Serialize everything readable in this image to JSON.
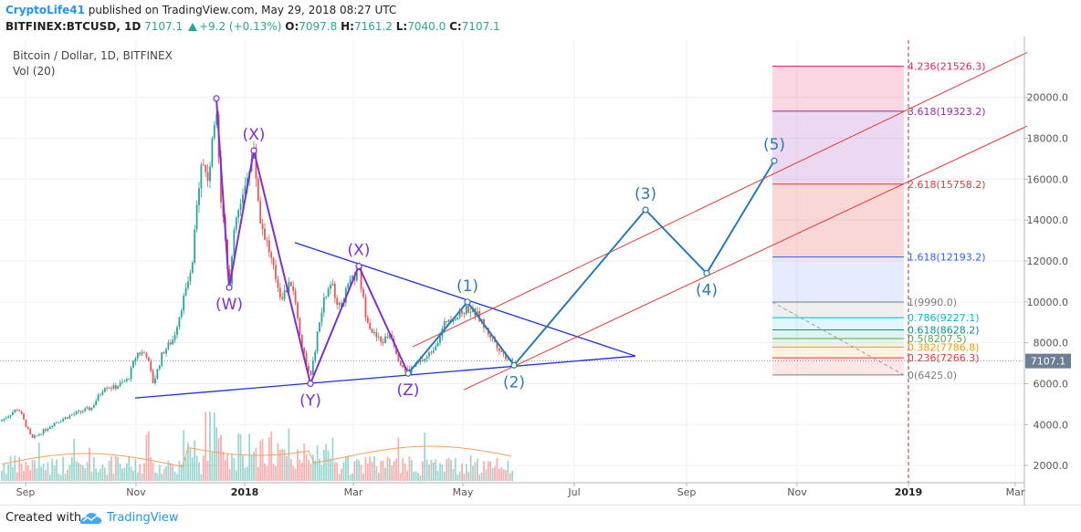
{
  "header": {
    "author": "CryptoLife41",
    "published_text": " published on TradingView.com, May 29, 2018 08:27 UTC",
    "symbol": "BITFINEX:BTCUSD, 1D",
    "last": "7107.1",
    "change": "+9.2 (+0.13%)",
    "open_label": "O:",
    "open": "7097.8",
    "high_label": "H:",
    "high": "7161.2",
    "low_label": "L:",
    "low": "7040.0",
    "close_label": "C:",
    "close": "7107.1"
  },
  "legend": {
    "title": "Bitcoin / Dollar, 1D, BITFINEX",
    "volume": "Vol (20)"
  },
  "footer": {
    "created_with": "Created with",
    "brand": "TradingView"
  },
  "colors": {
    "bull": "#26a69a",
    "bear": "#ef5350",
    "elliott": "#2a7ab5",
    "wxy": "#7b2fd6",
    "triangle": "#1a2fe0",
    "channel": "#e53935",
    "price_tag": "#6d7f94",
    "brand": "#2196f3"
  },
  "chart_data": {
    "type": "candlestick",
    "price_axis": {
      "min": 1200,
      "max": 22800,
      "ticks": [
        "2000.0",
        "4000.0",
        "6000.0",
        "8000.0",
        "10000.0",
        "12000.0",
        "14000.0",
        "16000.0",
        "18000.0",
        "20000.0"
      ],
      "tick_values": [
        2000,
        4000,
        6000,
        8000,
        10000,
        12000,
        14000,
        16000,
        18000,
        20000
      ],
      "last_price_tag": "7107.1",
      "last_price": 7107.1
    },
    "time_axis": {
      "labels": [
        "Sep",
        "Nov",
        "2018",
        "Mar",
        "May",
        "Jul",
        "Sep",
        "Nov",
        "2019",
        "Mar"
      ],
      "bold": [
        "2018",
        "2019"
      ]
    },
    "price_path": [
      {
        "t": 0,
        "p": 4150
      },
      {
        "t": 20,
        "p": 4800
      },
      {
        "t": 35,
        "p": 3300
      },
      {
        "t": 48,
        "p": 3700
      },
      {
        "t": 60,
        "p": 4100
      },
      {
        "t": 80,
        "p": 4500
      },
      {
        "t": 100,
        "p": 4800
      },
      {
        "t": 115,
        "p": 5900
      },
      {
        "t": 125,
        "p": 5800
      },
      {
        "t": 140,
        "p": 6200
      },
      {
        "t": 150,
        "p": 7500
      },
      {
        "t": 160,
        "p": 7500
      },
      {
        "t": 168,
        "p": 6000
      },
      {
        "t": 178,
        "p": 7500
      },
      {
        "t": 190,
        "p": 8200
      },
      {
        "t": 200,
        "p": 10000
      },
      {
        "t": 210,
        "p": 11500
      },
      {
        "t": 220,
        "p": 17000
      },
      {
        "t": 228,
        "p": 16000
      },
      {
        "t": 232,
        "p": 17500
      },
      {
        "t": 237,
        "p": 19800
      },
      {
        "t": 242,
        "p": 15000
      },
      {
        "t": 246,
        "p": 13500
      },
      {
        "t": 251,
        "p": 10800
      },
      {
        "t": 258,
        "p": 14000
      },
      {
        "t": 266,
        "p": 15000
      },
      {
        "t": 272,
        "p": 16500
      },
      {
        "t": 278,
        "p": 17300
      },
      {
        "t": 285,
        "p": 14000
      },
      {
        "t": 292,
        "p": 13000
      },
      {
        "t": 300,
        "p": 11500
      },
      {
        "t": 308,
        "p": 10200
      },
      {
        "t": 320,
        "p": 11000
      },
      {
        "t": 330,
        "p": 8000
      },
      {
        "t": 340,
        "p": 6200
      },
      {
        "t": 348,
        "p": 8500
      },
      {
        "t": 356,
        "p": 10300
      },
      {
        "t": 364,
        "p": 10800
      },
      {
        "t": 372,
        "p": 9700
      },
      {
        "t": 382,
        "p": 10800
      },
      {
        "t": 393,
        "p": 11500
      },
      {
        "t": 400,
        "p": 9500
      },
      {
        "t": 408,
        "p": 8500
      },
      {
        "t": 418,
        "p": 8000
      },
      {
        "t": 428,
        "p": 8500
      },
      {
        "t": 438,
        "p": 7000
      },
      {
        "t": 447,
        "p": 6600
      },
      {
        "t": 458,
        "p": 7000
      },
      {
        "t": 468,
        "p": 7300
      },
      {
        "t": 478,
        "p": 8000
      },
      {
        "t": 490,
        "p": 9200
      },
      {
        "t": 502,
        "p": 9300
      },
      {
        "t": 512,
        "p": 9700
      },
      {
        "t": 522,
        "p": 9400
      },
      {
        "t": 533,
        "p": 8600
      },
      {
        "t": 543,
        "p": 8000
      },
      {
        "t": 552,
        "p": 7400
      },
      {
        "t": 563,
        "p": 7100
      }
    ],
    "wxy_pattern": {
      "points": [
        {
          "t": 237,
          "p": 19950
        },
        {
          "t": 251,
          "p": 10700
        },
        {
          "t": 278,
          "p": 17400
        },
        {
          "t": 340,
          "p": 6000
        },
        {
          "t": 393,
          "p": 11750
        },
        {
          "t": 447,
          "p": 6500
        }
      ],
      "labels": [
        {
          "text": "(W)",
          "t": 251,
          "p": 10700,
          "pos": "below"
        },
        {
          "text": "(X)",
          "t": 278,
          "p": 17400,
          "pos": "above"
        },
        {
          "text": "(Y)",
          "t": 340,
          "p": 6000,
          "pos": "below"
        },
        {
          "text": "(X)",
          "t": 393,
          "p": 11750,
          "pos": "above"
        },
        {
          "text": "(Z)",
          "t": 447,
          "p": 6500,
          "pos": "below"
        }
      ]
    },
    "elliott_waves": {
      "points": [
        {
          "t": 447,
          "p": 6500
        },
        {
          "t": 512,
          "p": 10000
        },
        {
          "t": 563,
          "p": 6900
        },
        {
          "t": 707,
          "p": 14500
        },
        {
          "t": 774,
          "p": 11400
        },
        {
          "t": 848,
          "p": 16900
        }
      ],
      "labels": [
        {
          "text": "(1)",
          "t": 512,
          "p": 10000,
          "pos": "above"
        },
        {
          "text": "(2)",
          "t": 563,
          "p": 6900,
          "pos": "below"
        },
        {
          "text": "(3)",
          "t": 707,
          "p": 14500,
          "pos": "above"
        },
        {
          "text": "(4)",
          "t": 774,
          "p": 11400,
          "pos": "below"
        },
        {
          "text": "(5)",
          "t": 848,
          "p": 16900,
          "pos": "above"
        }
      ]
    },
    "trendlines": {
      "triangle": [
        {
          "from": {
            "t": 148,
            "p": 5300
          },
          "to": {
            "t": 696,
            "p": 7350
          }
        },
        {
          "from": {
            "t": 323,
            "p": 12900
          },
          "to": {
            "t": 696,
            "p": 7350
          }
        }
      ],
      "channel": [
        {
          "from": {
            "t": 452,
            "p": 7800
          },
          "to": {
            "t": 1125,
            "p": 22200
          }
        },
        {
          "from": {
            "t": 508,
            "p": 5700
          },
          "to": {
            "t": 1125,
            "p": 18600
          }
        }
      ]
    },
    "fibonacci": {
      "left": 846,
      "right": 990,
      "levels": [
        {
          "ratio": "0",
          "label": "0(6425.0)",
          "price": 6425.0,
          "color": "#787b86",
          "fill": null
        },
        {
          "ratio": "0.236",
          "label": "0.236(7266.3)",
          "price": 7266.3,
          "color": "#e53935",
          "fill": "rgba(229,57,53,0.12)"
        },
        {
          "ratio": "0.382",
          "label": "0.382(7786.8)",
          "price": 7786.8,
          "color": "#ff9800",
          "fill": "rgba(255,152,0,0.12)"
        },
        {
          "ratio": "0.5",
          "label": "0.5(8207.5)",
          "price": 8207.5,
          "color": "#4caf50",
          "fill": "rgba(76,175,80,0.12)"
        },
        {
          "ratio": "0.618",
          "label": "0.618(8628.2)",
          "price": 8628.2,
          "color": "#009688",
          "fill": "rgba(0,150,136,0.12)"
        },
        {
          "ratio": "0.786",
          "label": "0.786(9227.1)",
          "price": 9227.1,
          "color": "#00bcd4",
          "fill": "rgba(0,188,212,0.12)"
        },
        {
          "ratio": "1",
          "label": "1(9990.0)",
          "price": 9990.0,
          "color": "#787b86",
          "fill": "rgba(120,123,134,0.12)"
        },
        {
          "ratio": "1.618",
          "label": "1.618(12193.2)",
          "price": 12193.2,
          "color": "#2962ff",
          "fill": "rgba(41,98,255,0.12)"
        },
        {
          "ratio": "2.618",
          "label": "2.618(15758.2)",
          "price": 15758.2,
          "color": "#e53935",
          "fill": "rgba(229,57,53,0.2)"
        },
        {
          "ratio": "3.618",
          "label": "3.618(19323.2)",
          "price": 19323.2,
          "color": "#9c27b0",
          "fill": "rgba(156,39,176,0.18)"
        },
        {
          "ratio": "4.236",
          "label": "4.236(21526.3)",
          "price": 21526.3,
          "color": "#e91e63",
          "fill": "rgba(233,30,99,0.18)"
        }
      ]
    }
  }
}
